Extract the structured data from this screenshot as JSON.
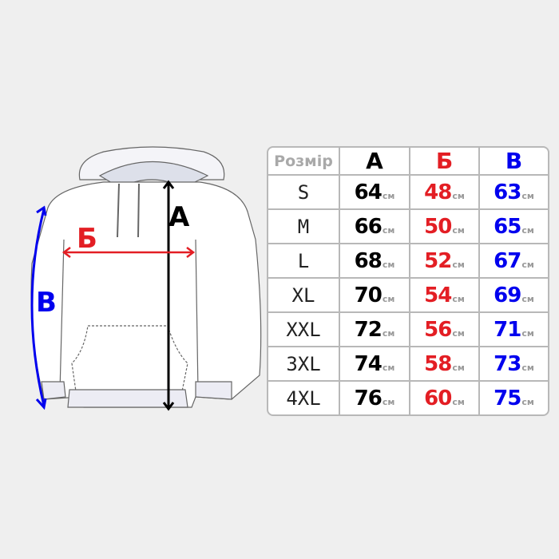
{
  "colors": {
    "A": "#000000",
    "B": "#e31e24",
    "V": "#0000ee",
    "background": "#efefef"
  },
  "diagram_labels": {
    "A": "А",
    "B": "Б",
    "V": "В"
  },
  "table": {
    "headers": [
      "Розмір",
      "А",
      "Б",
      "В"
    ],
    "unit": "см",
    "rows": [
      {
        "size": "S",
        "a": "64",
        "b": "48",
        "v": "63"
      },
      {
        "size": "M",
        "a": "66",
        "b": "50",
        "v": "65"
      },
      {
        "size": "L",
        "a": "68",
        "b": "52",
        "v": "67"
      },
      {
        "size": "XL",
        "a": "70",
        "b": "54",
        "v": "69"
      },
      {
        "size": "XXL",
        "a": "72",
        "b": "56",
        "v": "71"
      },
      {
        "size": "3XL",
        "a": "74",
        "b": "58",
        "v": "73"
      },
      {
        "size": "4XL",
        "a": "76",
        "b": "60",
        "v": "75"
      }
    ]
  }
}
